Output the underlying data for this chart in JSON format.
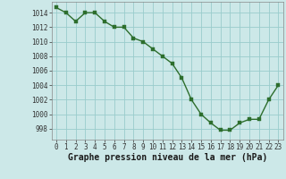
{
  "hours": [
    0,
    1,
    2,
    3,
    4,
    5,
    6,
    7,
    8,
    9,
    10,
    11,
    12,
    13,
    14,
    15,
    16,
    17,
    18,
    19,
    20,
    21,
    22,
    23
  ],
  "pressure": [
    1014.7,
    1014.0,
    1012.8,
    1014.0,
    1014.0,
    1012.8,
    1012.0,
    1012.0,
    1010.5,
    1010.0,
    1009.0,
    1008.0,
    1007.0,
    1005.0,
    1002.0,
    1000.0,
    998.8,
    997.8,
    997.8,
    998.8,
    999.3,
    999.3,
    1002.0,
    1004.0
  ],
  "line_color": "#2d6e2d",
  "marker_color": "#2d6e2d",
  "bg_color": "#cce8e8",
  "grid_color": "#99cccc",
  "xlabel": "Graphe pression niveau de la mer (hPa)",
  "xlabel_fontsize": 7,
  "xlim": [
    -0.5,
    23.5
  ],
  "ylim": [
    996.5,
    1015.5
  ],
  "yticks": [
    998,
    1000,
    1002,
    1004,
    1006,
    1008,
    1010,
    1012,
    1014
  ],
  "xticks": [
    0,
    1,
    2,
    3,
    4,
    5,
    6,
    7,
    8,
    9,
    10,
    11,
    12,
    13,
    14,
    15,
    16,
    17,
    18,
    19,
    20,
    21,
    22,
    23
  ],
  "tick_fontsize": 5.5,
  "marker_size": 2.5,
  "line_width": 1.0
}
